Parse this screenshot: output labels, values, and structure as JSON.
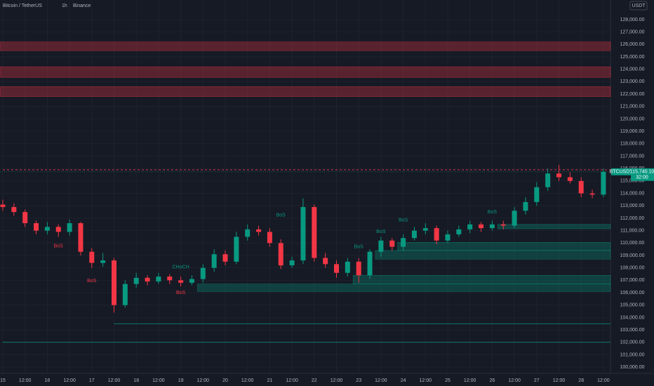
{
  "header": {
    "symbol": "Bitcoin / TetherUS",
    "interval": "1h",
    "exchange": "Binance",
    "currency": "USDT"
  },
  "chart_data": {
    "type": "candlestick",
    "x": [
      "15",
      null,
      "12:00",
      null,
      "16",
      null,
      "12:00",
      null,
      "17",
      null,
      "12:00",
      null,
      "18",
      null,
      "12:00",
      null,
      "19",
      null,
      "12:00",
      null,
      "20",
      null,
      "12:00",
      null,
      "21",
      null,
      "12:00",
      null,
      "22",
      null,
      "12:00",
      null,
      "23",
      null,
      "12:00",
      null,
      "24",
      null,
      "12:00",
      null,
      "25",
      null,
      "12:00",
      null,
      "26",
      null,
      "12:00",
      null,
      "27",
      null,
      "12:00",
      null,
      "28",
      null,
      "12:00"
    ],
    "open": [
      113100,
      112900,
      112500,
      111600,
      111000,
      111300,
      110900,
      111600,
      109300,
      108400,
      108600,
      105000,
      106700,
      107200,
      106900,
      107300,
      107000,
      106800,
      107100,
      108000,
      109100,
      108500,
      110500,
      111100,
      110900,
      110000,
      108200,
      108600,
      112900,
      108800,
      108300,
      107600,
      108500,
      107400,
      109300,
      110200,
      109700,
      110400,
      111000,
      111200,
      110200,
      110700,
      111100,
      111500,
      111200,
      111500,
      111400,
      112600,
      113300,
      114500,
      115600,
      115300,
      115000,
      114000,
      113900
    ],
    "high": [
      113500,
      113200,
      112700,
      111800,
      111700,
      111500,
      111900,
      111700,
      109600,
      109200,
      108800,
      107000,
      107600,
      107400,
      107600,
      107500,
      107300,
      107400,
      108300,
      109500,
      109400,
      110900,
      111500,
      111400,
      111200,
      110300,
      108900,
      113600,
      113100,
      109200,
      108600,
      108800,
      108800,
      109500,
      110500,
      110400,
      110700,
      111300,
      111600,
      111400,
      111000,
      111400,
      111800,
      111700,
      111800,
      111800,
      112900,
      113700,
      114900,
      116000,
      116300,
      115700,
      115300,
      114300,
      116000
    ],
    "low": [
      112600,
      112200,
      111300,
      110700,
      110700,
      110500,
      110600,
      109000,
      108000,
      108100,
      104400,
      104800,
      106400,
      106600,
      106700,
      106700,
      106500,
      106600,
      106800,
      107700,
      108200,
      108300,
      110200,
      110600,
      109700,
      107900,
      108000,
      108300,
      108500,
      108000,
      107200,
      107300,
      106800,
      107100,
      108900,
      109400,
      109400,
      110200,
      110700,
      109900,
      110000,
      110500,
      110800,
      110900,
      111000,
      111100,
      111200,
      112300,
      113000,
      114200,
      115000,
      114800,
      113700,
      113600,
      113700
    ],
    "close": [
      112900,
      112500,
      111600,
      111000,
      111300,
      110900,
      111600,
      109300,
      108400,
      108600,
      105000,
      106700,
      107200,
      106900,
      107300,
      107000,
      106800,
      107100,
      108000,
      109100,
      108500,
      110500,
      111100,
      110900,
      110000,
      108200,
      108600,
      112900,
      108800,
      108300,
      107600,
      108500,
      107400,
      109300,
      110200,
      109700,
      110400,
      111000,
      111200,
      110200,
      110700,
      111100,
      111500,
      111200,
      111500,
      111400,
      112600,
      113300,
      114500,
      115600,
      115300,
      115000,
      114000,
      113900,
      115740.1
    ],
    "up_color": "#089981",
    "down_color": "#f23645",
    "ylim": [
      99500,
      129580
    ],
    "yticks": [
      {
        "value": 100000,
        "label": "100,000.00"
      },
      {
        "value": 101000,
        "label": "101,000.00"
      },
      {
        "value": 102000,
        "label": "102,000.00"
      },
      {
        "value": 103000,
        "label": "103,000.00"
      },
      {
        "value": 104000,
        "label": "104,000.00"
      },
      {
        "value": 105000,
        "label": "105,000.00"
      },
      {
        "value": 106000,
        "label": "106,000.00"
      },
      {
        "value": 107000,
        "label": "107,000.00"
      },
      {
        "value": 108000,
        "label": "108,000.00"
      },
      {
        "value": 109000,
        "label": "109,000.00"
      },
      {
        "value": 110000,
        "label": "110,000.00"
      },
      {
        "value": 111000,
        "label": "111,000.00"
      },
      {
        "value": 112000,
        "label": "112,000.00"
      },
      {
        "value": 113000,
        "label": "113,000.00"
      },
      {
        "value": 114000,
        "label": "114,000.00"
      },
      {
        "value": 115000,
        "label": "115,000.00"
      },
      {
        "value": 116000,
        "label": "116,000.00"
      },
      {
        "value": 117000,
        "label": "117,000.00"
      },
      {
        "value": 118000,
        "label": "118,000.00"
      },
      {
        "value": 119000,
        "label": "119,000.00"
      },
      {
        "value": 120000,
        "label": "120,000.00"
      },
      {
        "value": 121000,
        "label": "121,000.00"
      },
      {
        "value": 122000,
        "label": "122,000.00"
      },
      {
        "value": 123000,
        "label": "123,000.00"
      },
      {
        "value": 124000,
        "label": "124,000.00"
      },
      {
        "value": 125000,
        "label": "125,000.00"
      },
      {
        "value": 126000,
        "label": "126,000.00"
      },
      {
        "value": 127000,
        "label": "127,000.00"
      },
      {
        "value": 128000,
        "label": "128,000.00"
      }
    ],
    "grid": true,
    "zones": [
      {
        "top": 126200,
        "bottom": 125500,
        "start": 0,
        "color": "#f23645"
      },
      {
        "top": 124200,
        "bottom": 123350,
        "start": 0,
        "color": "#f23645"
      },
      {
        "top": 122600,
        "bottom": 121800,
        "start": 0,
        "color": "#f23645"
      },
      {
        "top": 106700,
        "bottom": 106100,
        "start": 18,
        "color": "#089981"
      },
      {
        "top": 107400,
        "bottom": 106700,
        "start": 32,
        "color": "#089981"
      },
      {
        "top": 110050,
        "bottom": 109400,
        "start": 36,
        "color": "#089981"
      },
      {
        "top": 109400,
        "bottom": 108700,
        "start": 34,
        "color": "#089981"
      },
      {
        "top": 111500,
        "bottom": 111150,
        "start": 45,
        "color": "#089981"
      }
    ],
    "levels": [
      {
        "value": 115900,
        "start": 0,
        "color": "#f23645",
        "dashed": true
      },
      {
        "value": 103500,
        "start": 10,
        "color": "#089981",
        "dashed": false
      },
      {
        "value": 102000,
        "start": 0,
        "color": "#089981",
        "dashed": false
      }
    ],
    "annotations": [
      {
        "text": "BoS",
        "index": 5,
        "price": 109750,
        "color": "#f23645"
      },
      {
        "text": "BoS",
        "index": 8,
        "price": 106950,
        "color": "#f23645"
      },
      {
        "text": "CHoCH",
        "index": 16,
        "price": 108050,
        "color": "#089981"
      },
      {
        "text": "BoS",
        "index": 16,
        "price": 106000,
        "color": "#f23645"
      },
      {
        "text": "BoS",
        "index": 25,
        "price": 112250,
        "color": "#089981"
      },
      {
        "text": "BoS",
        "index": 32,
        "price": 109700,
        "color": "#089981"
      },
      {
        "text": "BoS",
        "index": 34,
        "price": 110900,
        "color": "#089981"
      },
      {
        "text": "BoS",
        "index": 36,
        "price": 111850,
        "color": "#089981"
      },
      {
        "text": "BoS",
        "index": 44,
        "price": 112500,
        "color": "#089981"
      }
    ],
    "price_tag": {
      "symbol": "BTCUSDT",
      "value": 115740.1,
      "label": "115,740.10",
      "countdown": "32:00"
    }
  }
}
